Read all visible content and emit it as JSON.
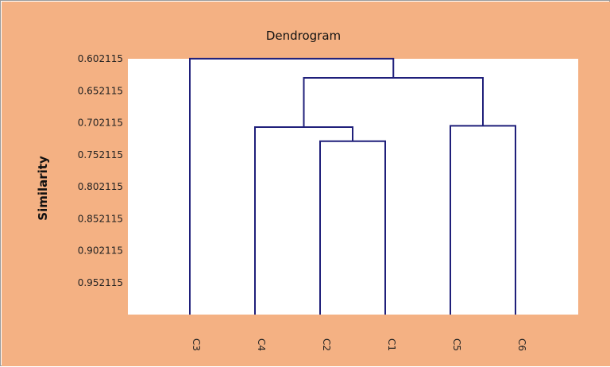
{
  "chart_data": {
    "type": "dendrogram",
    "title": "Dendrogram",
    "ylabel": "Similarity",
    "xlabel": "",
    "yticks": [
      "0.602115",
      "0.652115",
      "0.702115",
      "0.752115",
      "0.802115",
      "0.852115",
      "0.902115",
      "0.952115"
    ],
    "ytick_values": [
      0.602115,
      0.652115,
      0.702115,
      0.752115,
      0.802115,
      0.852115,
      0.902115,
      0.952115
    ],
    "ylim": [
      0.602115,
      1.002115
    ],
    "y_inverted": true,
    "leaves": [
      "C3",
      "C4",
      "C2",
      "C1",
      "C5",
      "C6"
    ],
    "merges": [
      {
        "left": "C2",
        "right": "C1",
        "height": 0.731
      },
      {
        "left": "C4",
        "right": "C2+C1",
        "height": 0.709
      },
      {
        "left": "C5",
        "right": "C6",
        "height": 0.707
      },
      {
        "left": "C4+C2+C1",
        "right": "C5+C6",
        "height": 0.632
      },
      {
        "left": "C3",
        "right": "C4+C2+C1+C5+C6",
        "height": 0.602
      }
    ],
    "grid": false,
    "legend": "none",
    "colors": {
      "background": "#F4B183",
      "plot_area": "#ffffff",
      "lines": "#1F1F7A"
    }
  }
}
